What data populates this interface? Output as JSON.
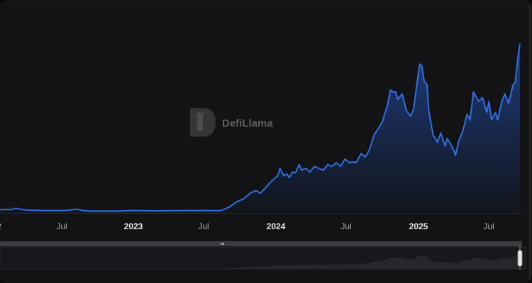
{
  "watermark": {
    "text": "DefiLlama",
    "icon": "llama-logo-icon"
  },
  "colors": {
    "line": "#2f6fe0",
    "area_top": "#1e3f86",
    "area_bottom": "#13151c",
    "background": "#131315"
  },
  "chart_data": {
    "type": "area",
    "title": "",
    "xlabel": "",
    "ylabel": "",
    "y_axis_visible": false,
    "grid": false,
    "legend": "none",
    "x_tick_labels": [
      "2",
      "Jul",
      "2023",
      "Jul",
      "2024",
      "Jul",
      "2025",
      "Jul"
    ],
    "bold_tick_labels": [
      "2023",
      "2024",
      "2025"
    ],
    "x_range": [
      "2022-05-15",
      "2025-09-05"
    ],
    "y_range_relative": [
      0,
      1
    ],
    "series": [
      {
        "x": [
          "2022-05-15",
          "2022-06-01",
          "2022-06-10",
          "2022-06-20",
          "2022-07-01",
          "2022-07-20",
          "2022-08-10",
          "2022-09-01",
          "2022-09-10",
          "2022-10-01",
          "2022-10-15",
          "2022-11-01",
          "2022-11-09",
          "2022-11-25",
          "2022-12-15",
          "2023-01-15",
          "2023-02-15",
          "2023-03-15",
          "2023-04-15",
          "2023-05-15",
          "2023-06-15",
          "2023-07-01",
          "2023-08-01",
          "2023-09-01",
          "2023-09-20",
          "2023-10-10",
          "2023-10-20",
          "2023-11-01",
          "2023-11-15",
          "2023-12-01",
          "2023-12-10",
          "2023-12-20",
          "2024-01-01",
          "2024-01-10",
          "2024-01-20",
          "2024-02-01",
          "2024-02-10",
          "2024-02-20",
          "2024-02-25",
          "2024-03-05",
          "2024-03-12",
          "2024-03-18",
          "2024-03-25",
          "2024-04-01",
          "2024-04-10",
          "2024-04-15",
          "2024-04-25",
          "2024-05-05",
          "2024-05-15",
          "2024-05-25",
          "2024-06-05",
          "2024-06-15",
          "2024-06-25",
          "2024-07-05",
          "2024-07-15",
          "2024-07-25",
          "2024-08-05",
          "2024-08-12",
          "2024-08-20",
          "2024-09-01",
          "2024-09-10",
          "2024-09-20",
          "2024-10-01",
          "2024-10-10",
          "2024-10-20",
          "2024-11-01",
          "2024-11-08",
          "2024-11-15",
          "2024-11-20",
          "2024-11-25",
          "2024-12-05",
          "2024-12-15",
          "2024-12-25",
          "2025-01-01",
          "2025-01-10",
          "2025-01-15",
          "2025-01-20",
          "2025-01-25",
          "2025-02-01",
          "2025-02-05",
          "2025-02-15",
          "2025-02-25",
          "2025-03-05",
          "2025-03-15",
          "2025-03-20",
          "2025-03-28",
          "2025-04-05",
          "2025-04-08",
          "2025-04-15",
          "2025-04-25",
          "2025-05-05",
          "2025-05-12",
          "2025-05-20",
          "2025-06-01",
          "2025-06-10",
          "2025-06-20",
          "2025-06-25",
          "2025-07-01",
          "2025-07-10",
          "2025-07-15",
          "2025-07-25",
          "2025-08-01",
          "2025-08-10",
          "2025-08-20",
          "2025-08-25",
          "2025-09-01",
          "2025-09-05"
        ],
        "y": [
          0.017,
          0.019,
          0.018,
          0.025,
          0.02,
          0.015,
          0.014,
          0.012,
          0.013,
          0.013,
          0.013,
          0.018,
          0.02,
          0.012,
          0.01,
          0.01,
          0.01,
          0.013,
          0.012,
          0.011,
          0.012,
          0.012,
          0.013,
          0.013,
          0.012,
          0.013,
          0.021,
          0.035,
          0.058,
          0.075,
          0.09,
          0.11,
          0.12,
          0.105,
          0.13,
          0.16,
          0.18,
          0.2,
          0.24,
          0.2,
          0.21,
          0.19,
          0.22,
          0.215,
          0.26,
          0.23,
          0.24,
          0.22,
          0.25,
          0.24,
          0.23,
          0.26,
          0.25,
          0.27,
          0.25,
          0.29,
          0.27,
          0.275,
          0.27,
          0.32,
          0.3,
          0.34,
          0.42,
          0.45,
          0.49,
          0.58,
          0.66,
          0.65,
          0.65,
          0.61,
          0.64,
          0.55,
          0.52,
          0.56,
          0.72,
          0.8,
          0.79,
          0.71,
          0.69,
          0.55,
          0.42,
          0.38,
          0.43,
          0.36,
          0.4,
          0.37,
          0.33,
          0.31,
          0.38,
          0.44,
          0.53,
          0.5,
          0.65,
          0.6,
          0.62,
          0.54,
          0.6,
          0.5,
          0.54,
          0.5,
          0.6,
          0.64,
          0.59,
          0.69,
          0.7,
          0.85,
          0.91
        ]
      }
    ]
  },
  "range_selector": {
    "handle_icon": "grip-icon",
    "end_handle_icon": "resize-handle-icon"
  }
}
